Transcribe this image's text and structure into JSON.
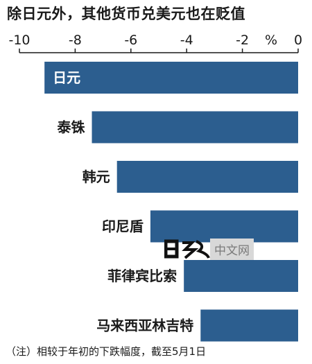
{
  "title": "除日元外，其他货币兑美元也在贬值",
  "note": "（注）相较于年初的下跌幅度，截至5月1日",
  "watermark": {
    "text": "中文网"
  },
  "colors": {
    "bar": "#2c5e8f",
    "bar_label_inside": "#ffffff",
    "axis": "#1a1a1a"
  },
  "chart_data": {
    "type": "bar",
    "orientation": "horizontal",
    "categories": [
      "日元",
      "泰铢",
      "韩元",
      "印尼盾",
      "菲律宾比索",
      "马来西亚林吉特"
    ],
    "values": [
      -9.1,
      -7.4,
      -6.5,
      -5.3,
      -4.1,
      -3.5
    ],
    "xlim": [
      -10,
      0
    ],
    "ticks": [
      -10,
      -8,
      -6,
      -4,
      -2,
      0
    ],
    "tick_labels": [
      "-10",
      "-8",
      "-6",
      "-4",
      "-2",
      "0"
    ],
    "unit_label": "%",
    "axis_position": "top",
    "grid": false,
    "legend": false
  }
}
